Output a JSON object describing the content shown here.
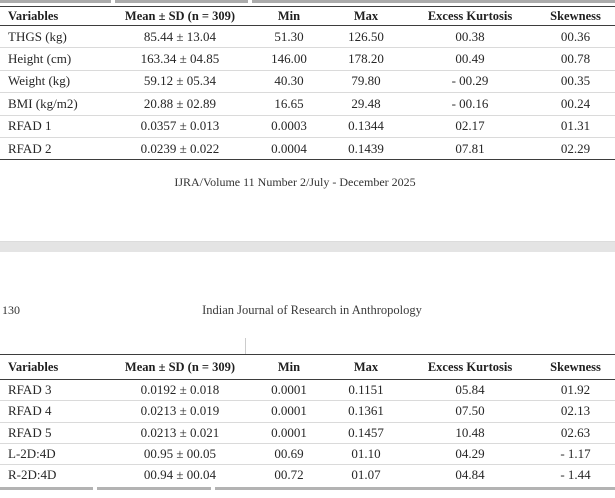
{
  "footer": {
    "text": "IJRA/Volume 11 Number 2/July - December 2025"
  },
  "page_header": {
    "page_number": "130",
    "running_title": "Indian Journal of Research in Anthropology"
  },
  "tables": {
    "upper": {
      "columns": [
        "Variables",
        "Mean ± SD (n = 309)",
        "Min",
        "Max",
        "Excess Kurtosis",
        "Skewness"
      ],
      "rows": [
        [
          "THGS (kg)",
          "85.44 ± 13.04",
          "51.30",
          "126.50",
          "00.38",
          "00.36"
        ],
        [
          "Height (cm)",
          "163.34 ± 04.85",
          "146.00",
          "178.20",
          "00.49",
          "00.78"
        ],
        [
          "Weight (kg)",
          "59.12 ± 05.34",
          "40.30",
          "79.80",
          "- 00.29",
          "00.35"
        ],
        [
          "BMI (kg/m2)",
          "20.88 ± 02.89",
          "16.65",
          "29.48",
          "- 00.16",
          "00.24"
        ],
        [
          "RFAD 1",
          "0.0357 ± 0.013",
          "0.0003",
          "0.1344",
          "02.17",
          "01.31"
        ],
        [
          "RFAD 2",
          "0.0239 ± 0.022",
          "0.0004",
          "0.1439",
          "07.81",
          "02.29"
        ]
      ]
    },
    "lower": {
      "columns": [
        "Variables",
        "Mean ± SD (n = 309)",
        "Min",
        "Max",
        "Excess Kurtosis",
        "Skewness"
      ],
      "rows": [
        [
          "RFAD 3",
          "0.0192 ± 0.018",
          "0.0001",
          "0.1151",
          "05.84",
          "01.92"
        ],
        [
          "RFAD 4",
          "0.0213 ± 0.019",
          "0.0001",
          "0.1361",
          "07.50",
          "02.13"
        ],
        [
          "RFAD 5",
          "0.0213 ± 0.021",
          "0.0001",
          "0.1457",
          "10.48",
          "02.63"
        ],
        [
          "L-2D:4D",
          "00.95 ± 00.05",
          "00.69",
          "01.10",
          "04.29",
          "- 1.17"
        ],
        [
          "R-2D:4D",
          "00.94 ± 00.04",
          "00.72",
          "01.07",
          "04.84",
          "- 1.44"
        ]
      ]
    }
  }
}
